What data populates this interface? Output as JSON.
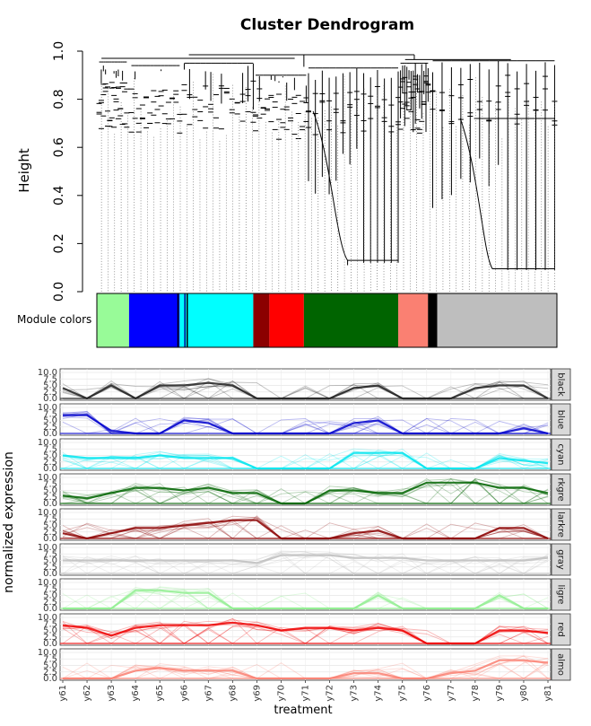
{
  "chart_data": [
    {
      "type": "dendrogram",
      "title": "Cluster Dendrogram",
      "ylabel": "Height",
      "ylim": [
        0,
        1
      ],
      "yticks": [
        "0.0",
        "0.2",
        "0.4",
        "0.6",
        "0.8",
        "1.0"
      ],
      "color_bar_label": "Module colors",
      "module_bar": [
        {
          "module": "lightgreen",
          "color": "#98fb98",
          "start": 0.0,
          "end": 0.07
        },
        {
          "module": "blue",
          "color": "#0000ff",
          "start": 0.07,
          "end": 0.18
        },
        {
          "module": "cyan",
          "color": "#00ffff",
          "start": 0.18,
          "end": 0.34
        },
        {
          "module": "darkred",
          "color": "#8b0000",
          "start": 0.34,
          "end": 0.375
        },
        {
          "module": "red",
          "color": "#ff0000",
          "start": 0.375,
          "end": 0.45
        },
        {
          "module": "darkgreen",
          "color": "#006400",
          "start": 0.45,
          "end": 0.655
        },
        {
          "module": "salmon",
          "color": "#fa8072",
          "start": 0.655,
          "end": 0.72
        },
        {
          "module": "black",
          "color": "#000000",
          "start": 0.72,
          "end": 0.74
        },
        {
          "module": "gray",
          "color": "#bebebe",
          "start": 0.74,
          "end": 1.0
        }
      ]
    },
    {
      "type": "line",
      "xlabel": "treatment",
      "ylabel": "normalized expression",
      "ylim": [
        0,
        10
      ],
      "yticks": [
        "0.0",
        "2.5",
        "5.0",
        "7.5",
        "10.0"
      ],
      "categories": [
        "y61",
        "y62",
        "y63",
        "y64",
        "y65",
        "y66",
        "y67",
        "y68",
        "y69",
        "y70",
        "y71",
        "y72",
        "y73",
        "y74",
        "y75",
        "y76",
        "y77",
        "y78",
        "y79",
        "y80",
        "y81"
      ],
      "series": [
        {
          "name": "black",
          "color": "#202020",
          "values": [
            4,
            0,
            5,
            0,
            5,
            5,
            6,
            5,
            0,
            0,
            0,
            0,
            4,
            5,
            0,
            0,
            0,
            4,
            5,
            5,
            0
          ]
        },
        {
          "name": "blue",
          "color": "#0000cd",
          "values": [
            7,
            7,
            1,
            0,
            0,
            5,
            4,
            0,
            0,
            0,
            0,
            0,
            4,
            5,
            0,
            0,
            0,
            0,
            0,
            2,
            0
          ]
        },
        {
          "name": "cyan",
          "color": "#00e5ee",
          "values": [
            5,
            4,
            4,
            4,
            5,
            4,
            4,
            4,
            0,
            0,
            0,
            0,
            6,
            6,
            6,
            0,
            0,
            0,
            4,
            3,
            2
          ]
        },
        {
          "name": "darkgreen",
          "color": "#006400",
          "values": [
            3,
            2,
            4,
            6,
            6,
            5,
            6,
            4,
            4,
            0,
            0,
            5,
            5,
            4,
            4,
            8,
            8,
            8,
            6,
            6,
            4
          ]
        },
        {
          "name": "darkred",
          "color": "#8b0000",
          "values": [
            2,
            0,
            2,
            4,
            4,
            5,
            6,
            7,
            7,
            0,
            0,
            0,
            2,
            3,
            0,
            0,
            0,
            0,
            4,
            4,
            0
          ]
        },
        {
          "name": "gray",
          "color": "#bebebe",
          "values": [
            5,
            5,
            5,
            5,
            5,
            5,
            5,
            5,
            4,
            7,
            7,
            7,
            6,
            6,
            6,
            5,
            5,
            5,
            5,
            5,
            6
          ]
        },
        {
          "name": "lightgreen",
          "color": "#90ee90",
          "values": [
            0,
            0,
            0,
            7,
            7,
            6,
            6,
            0,
            0,
            0,
            0,
            0,
            0,
            5,
            0,
            0,
            0,
            0,
            5,
            0,
            0
          ]
        },
        {
          "name": "red",
          "color": "#ee0000",
          "values": [
            7,
            6,
            3,
            6,
            7,
            7,
            7,
            8,
            7,
            5,
            6,
            6,
            5,
            6,
            5,
            0,
            0,
            0,
            5,
            5,
            4
          ]
        },
        {
          "name": "salmon",
          "color": "#fa8072",
          "values": [
            0,
            0,
            0,
            3,
            4,
            3,
            3,
            3,
            0,
            0,
            0,
            0,
            2,
            2,
            0,
            0,
            2,
            3,
            7,
            7,
            6
          ]
        }
      ],
      "facet_labels": [
        "black",
        "blue",
        "cyan",
        "rkgre",
        "larkre",
        "gray",
        "ligre",
        "red",
        "almo"
      ]
    }
  ]
}
